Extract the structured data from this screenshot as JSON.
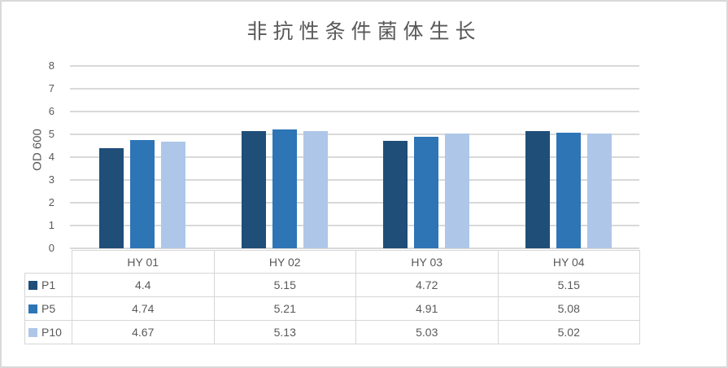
{
  "chart_data": {
    "type": "bar",
    "title": "非抗性条件菌体生长",
    "ylabel": "OD 600",
    "xlabel": "",
    "categories": [
      "HY 01",
      "HY 02",
      "HY 03",
      "HY 04"
    ],
    "series": [
      {
        "name": "P1",
        "color": "#1F4E79",
        "values": [
          4.4,
          5.15,
          4.72,
          5.15
        ]
      },
      {
        "name": "P5",
        "color": "#2E75B6",
        "values": [
          4.74,
          5.21,
          4.91,
          5.08
        ]
      },
      {
        "name": "P10",
        "color": "#AEC6E8",
        "values": [
          4.67,
          5.13,
          5.03,
          5.02
        ]
      }
    ],
    "ylim": [
      0,
      8
    ],
    "yticks": [
      0,
      1,
      2,
      3,
      4,
      5,
      6,
      7,
      8
    ],
    "grid": true,
    "legend_position": "data-table-left",
    "data_table_shown": true
  },
  "colors": {
    "text": "#595959",
    "gridline": "#d9d9d9",
    "table_border": "#d6d6d6",
    "chart_border": "#d9d9d9",
    "background": "#ffffff"
  }
}
